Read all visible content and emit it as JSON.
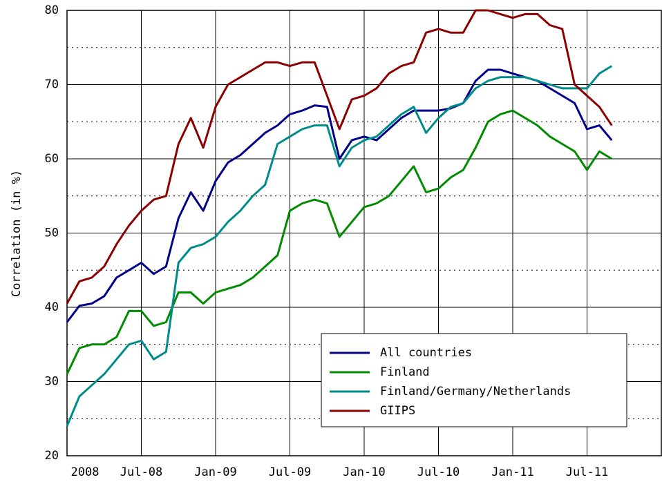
{
  "chart_data": {
    "type": "line",
    "y_label": "Correlation (in %)",
    "x": [
      "2008-01",
      "2008-02",
      "2008-03",
      "2008-04",
      "2008-05",
      "2008-06",
      "2008-07",
      "2008-08",
      "2008-09",
      "2008-10",
      "2008-11",
      "2008-12",
      "2009-01",
      "2009-02",
      "2009-03",
      "2009-04",
      "2009-05",
      "2009-06",
      "2009-07",
      "2009-08",
      "2009-09",
      "2009-10",
      "2009-11",
      "2009-12",
      "2010-01",
      "2010-02",
      "2010-03",
      "2010-04",
      "2010-05",
      "2010-06",
      "2010-07",
      "2010-08",
      "2010-09",
      "2010-10",
      "2010-11",
      "2010-12",
      "2011-01",
      "2011-02",
      "2011-03",
      "2011-04",
      "2011-05",
      "2011-06",
      "2011-07",
      "2011-08",
      "2011-09"
    ],
    "series": [
      {
        "name": "All countries",
        "color": "#00008b",
        "values": [
          38,
          40.2,
          40.5,
          41.5,
          44,
          45,
          46,
          44.5,
          45.5,
          52,
          55.5,
          53,
          57,
          59.5,
          60.5,
          62,
          63.5,
          64.5,
          66,
          66.5,
          67.2,
          67,
          60,
          62.5,
          63,
          62.5,
          64,
          65.5,
          66.5,
          66.5,
          66.5,
          66.8,
          67.5,
          70.5,
          72,
          72,
          71.5,
          71,
          70.5,
          69.5,
          68.5,
          67.5,
          64,
          64.5,
          62.5
        ]
      },
      {
        "name": "Finland",
        "color": "#008b00",
        "values": [
          31,
          34.5,
          35,
          35,
          36,
          39.5,
          39.5,
          37.5,
          38,
          42,
          42,
          40.5,
          42,
          42.5,
          43,
          44,
          45.5,
          47,
          53,
          54,
          54.5,
          54,
          49.5,
          51.5,
          53.5,
          54,
          55,
          57,
          59,
          55.5,
          56,
          57.5,
          58.5,
          61.5,
          65,
          66,
          66.5,
          65.5,
          64.5,
          63,
          62,
          61,
          58.5,
          61,
          60
        ]
      },
      {
        "name": "Finland/Germany/Netherlands",
        "color": "#008b8b",
        "values": [
          24,
          28,
          29.5,
          31,
          33,
          35,
          35.5,
          33,
          34,
          46,
          48,
          48.5,
          49.5,
          51.5,
          53,
          55,
          56.5,
          62,
          63,
          64,
          64.5,
          64.5,
          59,
          61.5,
          62.5,
          63,
          64.5,
          66,
          67,
          63.5,
          65.5,
          67,
          67.5,
          69.5,
          70.5,
          71,
          71,
          71,
          70.5,
          70,
          69.5,
          69.5,
          69.5,
          71.5,
          72.5
        ]
      },
      {
        "name": "GIIPS",
        "color": "#8b0000",
        "values": [
          40.5,
          43.5,
          44,
          45.5,
          48.5,
          51,
          53,
          54.5,
          55,
          62,
          65.5,
          61.5,
          67,
          70,
          71,
          72,
          73,
          73,
          72.5,
          73,
          73,
          68.5,
          64,
          68,
          68.5,
          69.5,
          71.5,
          72.5,
          73,
          77,
          77.5,
          77,
          77,
          80,
          80,
          79.5,
          79,
          79.5,
          79.5,
          78,
          77.5,
          70,
          68.5,
          67,
          64.5
        ]
      }
    ],
    "xlim": [
      "2008-01",
      "2012-01"
    ],
    "xticks": [
      {
        "value": "2008-01",
        "label": "2008"
      },
      {
        "value": "2008-07",
        "label": "Jul-08"
      },
      {
        "value": "2009-01",
        "label": "Jan-09"
      },
      {
        "value": "2009-07",
        "label": "Jul-09"
      },
      {
        "value": "2010-01",
        "label": "Jan-10"
      },
      {
        "value": "2010-07",
        "label": "Jul-10"
      },
      {
        "value": "2011-01",
        "label": "Jan-11"
      },
      {
        "value": "2011-07",
        "label": "Jul-11"
      }
    ],
    "ylim": [
      20,
      80
    ],
    "yticks": [
      20,
      30,
      40,
      50,
      60,
      70,
      80
    ],
    "minor_yticks": [
      25,
      35,
      45,
      55,
      65,
      75
    ],
    "grid": true,
    "legend": "lower right"
  }
}
